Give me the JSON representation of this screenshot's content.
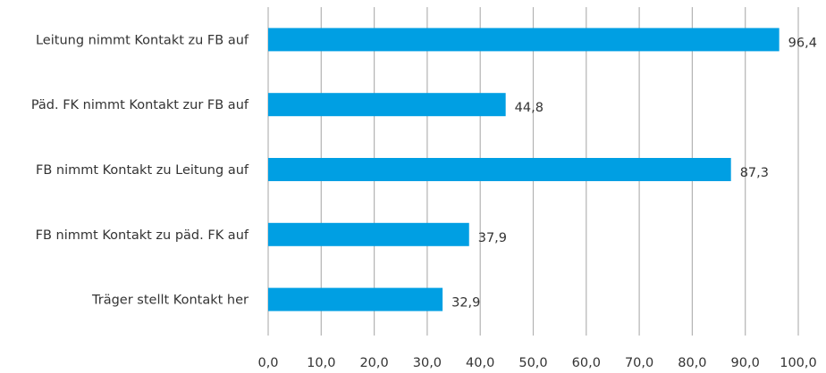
{
  "chart_data": {
    "type": "bar",
    "orientation": "horizontal",
    "categories": [
      "Leitung nimmt Kontakt zu FB auf",
      "Päd. FK nimmt Kontakt zur FB auf",
      "FB nimmt Kontakt zu Leitung auf",
      "FB nimmt Kontakt zu päd. FK auf",
      "Träger stellt Kontakt her"
    ],
    "values": [
      96.4,
      44.8,
      87.3,
      37.9,
      32.9
    ],
    "value_labels": [
      "96,4",
      "44,8",
      "87,3",
      "37,9",
      "32,9"
    ],
    "xlim": [
      0,
      100
    ],
    "x_ticks": [
      "0,0",
      "10,0",
      "20,0",
      "30,0",
      "40,0",
      "50,0",
      "60,0",
      "70,0",
      "80,0",
      "90,0",
      "100,0"
    ],
    "grid": true,
    "bar_color": "#009fe3",
    "title": "",
    "xlabel": "",
    "ylabel": ""
  }
}
